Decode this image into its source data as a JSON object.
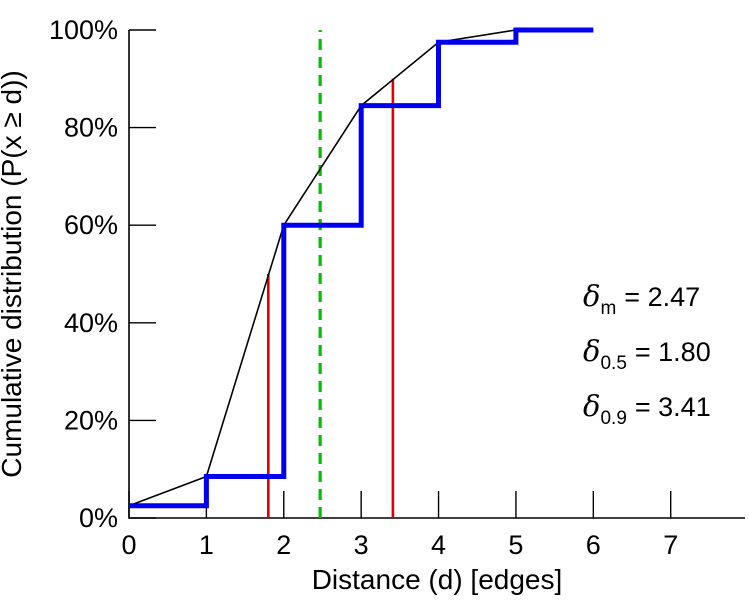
{
  "chart_data": {
    "type": "line",
    "title": "",
    "xlabel": "Distance (d) [edges]",
    "ylabel": "Cumulative distribution (P(x ≥ d))",
    "xlim": [
      0,
      7.96
    ],
    "ylim": [
      0,
      100
    ],
    "x_ticks": [
      0,
      1,
      2,
      3,
      4,
      5,
      6,
      7
    ],
    "x_tick_labels": [
      "0",
      "1",
      "2",
      "3",
      "4",
      "5",
      "6",
      "7"
    ],
    "y_ticks": [
      0,
      20,
      40,
      60,
      80,
      100
    ],
    "y_tick_labels": [
      "0%",
      "20%",
      "40%",
      "60%",
      "80%",
      "100%"
    ],
    "grid": false,
    "legend": "none",
    "series": [
      {
        "name": "cdf-linear-interpolation",
        "style": "line",
        "color": "#000000",
        "width": 1.6,
        "x": [
          0,
          1,
          2,
          3,
          4,
          5,
          6
        ],
        "y": [
          2.5,
          8.5,
          60,
          84.5,
          97.5,
          100,
          100
        ]
      },
      {
        "name": "cdf-step",
        "style": "step",
        "color": "#0000ee",
        "width": 5,
        "x": [
          0,
          1,
          2,
          3,
          4,
          5,
          6
        ],
        "y": [
          2.5,
          8.5,
          60,
          84.5,
          97.5,
          100,
          100
        ]
      }
    ],
    "vlines": [
      {
        "name": "median-marker",
        "x": 1.8,
        "y0": 0,
        "y1": 50,
        "color": "#dd0000",
        "width": 2.6,
        "dash": ""
      },
      {
        "name": "p90-marker",
        "x": 3.41,
        "y0": 0,
        "y1": 90,
        "color": "#dd0000",
        "width": 2.6,
        "dash": ""
      },
      {
        "name": "mean-marker",
        "x": 2.47,
        "y0": 0,
        "y1": 100,
        "color": "#00c000",
        "width": 3.2,
        "dash": "11,7"
      }
    ],
    "annotations": [
      {
        "symbol": "δ",
        "sub": "m",
        "text": "= 2.47"
      },
      {
        "symbol": "δ",
        "sub": "0.5",
        "text": "= 1.80"
      },
      {
        "symbol": "δ",
        "sub": "0.9",
        "text": "= 3.41"
      }
    ]
  }
}
